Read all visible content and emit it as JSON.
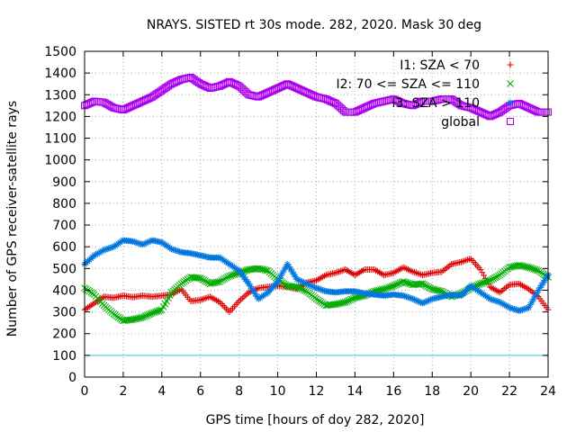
{
  "chart_data": {
    "type": "scatter",
    "title": "NRAYS. SISTED rt 30s mode. 282, 2020. Mask 30 deg",
    "xlabel": "GPS time [hours of doy 282, 2020]",
    "ylabel": "Number of GPS receiver-satellite rays",
    "xlim": [
      0,
      24
    ],
    "ylim": [
      0,
      1500
    ],
    "x_ticks": [
      "0",
      "2",
      "4",
      "6",
      "8",
      "10",
      "12",
      "14",
      "16",
      "18",
      "20",
      "22",
      "24"
    ],
    "y_ticks": [
      "0",
      "100",
      "200",
      "300",
      "400",
      "500",
      "600",
      "700",
      "800",
      "900",
      "1000",
      "1100",
      "1200",
      "1300",
      "1400",
      "1500"
    ],
    "grid": true,
    "legend_position": "top-right",
    "reference_line": {
      "y": 100,
      "color": "#33ccdd"
    },
    "series": [
      {
        "name": "I1: SZA < 70",
        "marker": "+",
        "color": "#dd0000",
        "x": [
          0,
          0.5,
          1,
          1.5,
          2,
          2.5,
          3,
          3.5,
          4,
          4.5,
          5,
          5.5,
          6,
          6.5,
          7,
          7.5,
          8,
          8.5,
          9,
          9.5,
          10,
          10.5,
          11,
          11.5,
          12,
          12.5,
          13,
          13.5,
          14,
          14.5,
          15,
          15.5,
          16,
          16.5,
          17,
          17.5,
          18,
          18.5,
          19,
          19.5,
          20,
          20.5,
          21,
          21.5,
          22,
          22.5,
          23,
          23.5,
          24
        ],
        "values": [
          310,
          340,
          370,
          365,
          375,
          368,
          375,
          370,
          375,
          380,
          405,
          350,
          355,
          370,
          345,
          300,
          350,
          390,
          410,
          415,
          420,
          415,
          405,
          435,
          445,
          470,
          480,
          495,
          470,
          495,
          495,
          470,
          480,
          505,
          485,
          470,
          480,
          485,
          520,
          530,
          545,
          495,
          415,
          390,
          425,
          430,
          405,
          370,
          310
        ]
      },
      {
        "name": "I2: 70 <= SZA <= 110",
        "marker": "x",
        "color": "#00aa00",
        "x": [
          0,
          0.5,
          1,
          1.5,
          2,
          2.5,
          3,
          3.5,
          4,
          4.5,
          5,
          5.5,
          6,
          6.5,
          7,
          7.5,
          8,
          8.5,
          9,
          9.5,
          10,
          10.5,
          11,
          11.5,
          12,
          12.5,
          13,
          13.5,
          14,
          14.5,
          15,
          15.5,
          16,
          16.5,
          17,
          17.5,
          18,
          18.5,
          19,
          19.5,
          20,
          20.5,
          21,
          21.5,
          22,
          22.5,
          23,
          23.5,
          24
        ],
        "values": [
          410,
          380,
          330,
          290,
          260,
          265,
          275,
          295,
          310,
          390,
          430,
          460,
          455,
          430,
          440,
          465,
          480,
          495,
          500,
          490,
          450,
          420,
          415,
          395,
          360,
          330,
          335,
          345,
          365,
          375,
          395,
          405,
          420,
          440,
          425,
          430,
          405,
          395,
          370,
          385,
          410,
          430,
          445,
          470,
          505,
          515,
          505,
          490,
          460
        ]
      },
      {
        "name": "I3: SZA > 110",
        "marker": "*",
        "color": "#0077dd",
        "x": [
          0,
          0.5,
          1,
          1.5,
          2,
          2.5,
          3,
          3.5,
          4,
          4.5,
          5,
          5.5,
          6,
          6.5,
          7,
          7.5,
          8,
          8.5,
          9,
          9.5,
          10,
          10.5,
          11,
          11.5,
          12,
          12.5,
          13,
          13.5,
          14,
          14.5,
          15,
          15.5,
          16,
          16.5,
          17,
          17.5,
          18,
          18.5,
          19,
          19.5,
          20,
          20.5,
          21,
          21.5,
          22,
          22.5,
          23,
          23.5,
          24
        ],
        "values": [
          520,
          560,
          585,
          600,
          630,
          625,
          610,
          630,
          620,
          590,
          575,
          570,
          560,
          550,
          550,
          520,
          490,
          430,
          360,
          390,
          440,
          520,
          450,
          430,
          410,
          395,
          390,
          395,
          395,
          385,
          380,
          375,
          380,
          375,
          360,
          340,
          360,
          370,
          380,
          375,
          420,
          390,
          360,
          345,
          320,
          305,
          320,
          400,
          470
        ]
      },
      {
        "name": "global",
        "marker": "square",
        "color": "#aa00ee",
        "x": [
          0,
          0.5,
          1,
          1.5,
          2,
          2.5,
          3,
          3.5,
          4,
          4.5,
          5,
          5.5,
          6,
          6.5,
          7,
          7.5,
          8,
          8.5,
          9,
          9.5,
          10,
          10.5,
          11,
          11.5,
          12,
          12.5,
          13,
          13.5,
          14,
          14.5,
          15,
          15.5,
          16,
          16.5,
          17,
          17.5,
          18,
          18.5,
          19,
          19.5,
          20,
          20.5,
          21,
          21.5,
          22,
          22.5,
          23,
          23.5,
          24
        ],
        "values": [
          1250,
          1270,
          1265,
          1240,
          1230,
          1250,
          1270,
          1290,
          1320,
          1350,
          1370,
          1380,
          1350,
          1330,
          1340,
          1360,
          1340,
          1300,
          1290,
          1310,
          1330,
          1350,
          1330,
          1310,
          1290,
          1280,
          1260,
          1220,
          1220,
          1240,
          1260,
          1270,
          1280,
          1260,
          1250,
          1270,
          1270,
          1280,
          1280,
          1250,
          1240,
          1220,
          1200,
          1220,
          1250,
          1260,
          1240,
          1220,
          1220
        ]
      }
    ]
  }
}
